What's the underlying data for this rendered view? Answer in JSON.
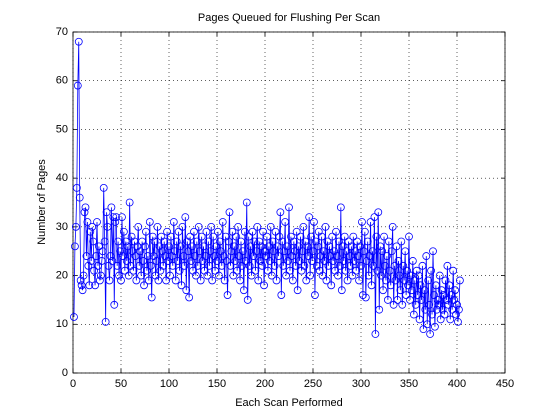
{
  "chart_data": {
    "type": "line",
    "title": "Pages Queued for Flushing Per Scan",
    "x_label": "Each Scan Performed",
    "y_label": "Number of Pages",
    "xlim": [
      0,
      450
    ],
    "xticks": [
      0,
      50,
      100,
      150,
      200,
      250,
      300,
      350,
      400,
      450
    ],
    "ylim": [
      0,
      70
    ],
    "yticks": [
      0,
      10,
      20,
      30,
      40,
      50,
      60,
      70
    ],
    "grid": true,
    "marker": "circle",
    "x": [
      1,
      2,
      3,
      4,
      5,
      6,
      7,
      8,
      9,
      10,
      11,
      12,
      13,
      14,
      15,
      16,
      17,
      18,
      19,
      20,
      21,
      22,
      23,
      24,
      25,
      26,
      27,
      28,
      29,
      30,
      31,
      32,
      33,
      34,
      35,
      36,
      37,
      38,
      39,
      40,
      41,
      42,
      43,
      44,
      45,
      46,
      47,
      48,
      49,
      50,
      51,
      52,
      53,
      54,
      55,
      56,
      57,
      58,
      59,
      60,
      61,
      62,
      63,
      64,
      65,
      66,
      67,
      68,
      69,
      70,
      71,
      72,
      73,
      74,
      75,
      76,
      77,
      78,
      79,
      80,
      81,
      82,
      83,
      84,
      85,
      86,
      87,
      88,
      89,
      90,
      91,
      92,
      93,
      94,
      95,
      96,
      97,
      98,
      99,
      100,
      101,
      102,
      103,
      104,
      105,
      106,
      107,
      108,
      109,
      110,
      111,
      112,
      113,
      114,
      115,
      116,
      117,
      118,
      119,
      120,
      121,
      122,
      123,
      124,
      125,
      126,
      127,
      128,
      129,
      130,
      131,
      132,
      133,
      134,
      135,
      136,
      137,
      138,
      139,
      140,
      141,
      142,
      143,
      144,
      145,
      146,
      147,
      148,
      149,
      150,
      151,
      152,
      153,
      154,
      155,
      156,
      157,
      158,
      159,
      160,
      161,
      162,
      163,
      164,
      165,
      166,
      167,
      168,
      169,
      170,
      171,
      172,
      173,
      174,
      175,
      176,
      177,
      178,
      179,
      180,
      181,
      182,
      183,
      184,
      185,
      186,
      187,
      188,
      189,
      190,
      191,
      192,
      193,
      194,
      195,
      196,
      197,
      198,
      199,
      200,
      201,
      202,
      203,
      204,
      205,
      206,
      207,
      208,
      209,
      210,
      211,
      212,
      213,
      214,
      215,
      216,
      217,
      218,
      219,
      220,
      221,
      222,
      223,
      224,
      225,
      226,
      227,
      228,
      229,
      230,
      231,
      232,
      233,
      234,
      235,
      236,
      237,
      238,
      239,
      240,
      241,
      242,
      243,
      244,
      245,
      246,
      247,
      248,
      249,
      250,
      251,
      252,
      253,
      254,
      255,
      256,
      257,
      258,
      259,
      260,
      261,
      262,
      263,
      264,
      265,
      266,
      267,
      268,
      269,
      270,
      271,
      272,
      273,
      274,
      275,
      276,
      277,
      278,
      279,
      280,
      281,
      282,
      283,
      284,
      285,
      286,
      287,
      288,
      289,
      290,
      291,
      292,
      293,
      294,
      295,
      296,
      297,
      298,
      299,
      300,
      301,
      302,
      303,
      304,
      305,
      306,
      307,
      308,
      309,
      310,
      311,
      312,
      313,
      314,
      315,
      316,
      317,
      318,
      319,
      320,
      321,
      322,
      323,
      324,
      325,
      326,
      327,
      328,
      329,
      330,
      331,
      332,
      333,
      334,
      335,
      336,
      337,
      338,
      339,
      340,
      341,
      342,
      343,
      344,
      345,
      346,
      347,
      348,
      349,
      350,
      351,
      352,
      353,
      354,
      355,
      356,
      357,
      358,
      359,
      360,
      361,
      362,
      363,
      364,
      365,
      366,
      367,
      368,
      369,
      370,
      371,
      372,
      373,
      374,
      375,
      376,
      377,
      378,
      379,
      380,
      381,
      382,
      383,
      384,
      385,
      386,
      387,
      388,
      389,
      390,
      391,
      392,
      393,
      394,
      395,
      396,
      397,
      398,
      399,
      400,
      401,
      402,
      403
    ],
    "series": [
      {
        "color": "#0000ff",
        "values": [
          11.5,
          26,
          30,
          38,
          59,
          68,
          36,
          19,
          18,
          17,
          20,
          33,
          34,
          24,
          31,
          22,
          18,
          29,
          23,
          30,
          27,
          21,
          18,
          24,
          31,
          22,
          26,
          19,
          20,
          23,
          25,
          38,
          27,
          10.5,
          33,
          30,
          22,
          19,
          24,
          34,
          23,
          32,
          14,
          31,
          32,
          22,
          27,
          20,
          25,
          19,
          32,
          24,
          29,
          21,
          27,
          23,
          26,
          20,
          35,
          22,
          28,
          25,
          21,
          27,
          24,
          19,
          26,
          30,
          22,
          25,
          20,
          27,
          23,
          18,
          26,
          29,
          21,
          24,
          19,
          31,
          22,
          15.5,
          28,
          24,
          27,
          20,
          23,
          30,
          19,
          26,
          21,
          28,
          25,
          22,
          27,
          24,
          19,
          29,
          23,
          26,
          20,
          28,
          24,
          22,
          31,
          25,
          19,
          27,
          23,
          29,
          21,
          26,
          18,
          30,
          24,
          22,
          32,
          17,
          27,
          25,
          15.5,
          28,
          23,
          26,
          21,
          29,
          24,
          20,
          27,
          22,
          30,
          25,
          19,
          28,
          23,
          26,
          21,
          24,
          29,
          20,
          27,
          22,
          25,
          30,
          19,
          28,
          24,
          21,
          26,
          23,
          29,
          20,
          27,
          25,
          22,
          31,
          24,
          19,
          28,
          23,
          16,
          27,
          33,
          22,
          25,
          29,
          20,
          26,
          23,
          28,
          21,
          30,
          24,
          19,
          27,
          22,
          25,
          17,
          29,
          23,
          35,
          15,
          28,
          22,
          26,
          20,
          29,
          24,
          27,
          21,
          25,
          30,
          19,
          27,
          23,
          26,
          22,
          29,
          18,
          25,
          24,
          28,
          21,
          26,
          23,
          30,
          20,
          27,
          25,
          22,
          29,
          19,
          26,
          24,
          28,
          33,
          16,
          27,
          22,
          25,
          31,
          20,
          26,
          23,
          34,
          21,
          28,
          24,
          19,
          27,
          25,
          22,
          29,
          17,
          26,
          23,
          28,
          21,
          25,
          30,
          22,
          27,
          19,
          26,
          24,
          32,
          20,
          28,
          23,
          25,
          31,
          16,
          27,
          22,
          26,
          29,
          21,
          24,
          28,
          20,
          25,
          23,
          30,
          19,
          27,
          22,
          26,
          24,
          18,
          28,
          23,
          25,
          21,
          29,
          24,
          20,
          27,
          22,
          34,
          17,
          26,
          23,
          28,
          21,
          25,
          19,
          27,
          24,
          22,
          26,
          20,
          28,
          23,
          25,
          21,
          27,
          24,
          19,
          26,
          22,
          31,
          16,
          25,
          29,
          15.5,
          23,
          27,
          20,
          24,
          31,
          18,
          25,
          22,
          32,
          8,
          28,
          21,
          33,
          13,
          26,
          20,
          25,
          17,
          28,
          22,
          19,
          24,
          15,
          27,
          21,
          18,
          25,
          30,
          14,
          22,
          19,
          26,
          15,
          23,
          20,
          17,
          27,
          14,
          22,
          19,
          25,
          16,
          21,
          18,
          28,
          15,
          20,
          17,
          23,
          12,
          19,
          14,
          21,
          16,
          20,
          11,
          18,
          15,
          22,
          9,
          17,
          13,
          24,
          10,
          19,
          14,
          8,
          21,
          12,
          25,
          16,
          9.5,
          18,
          13,
          15,
          14,
          20,
          11,
          17,
          13,
          16,
          12,
          19,
          15,
          22,
          14,
          18,
          11,
          16,
          13,
          21,
          15,
          17,
          12,
          14,
          10.5,
          13,
          19
        ]
      }
    ]
  }
}
